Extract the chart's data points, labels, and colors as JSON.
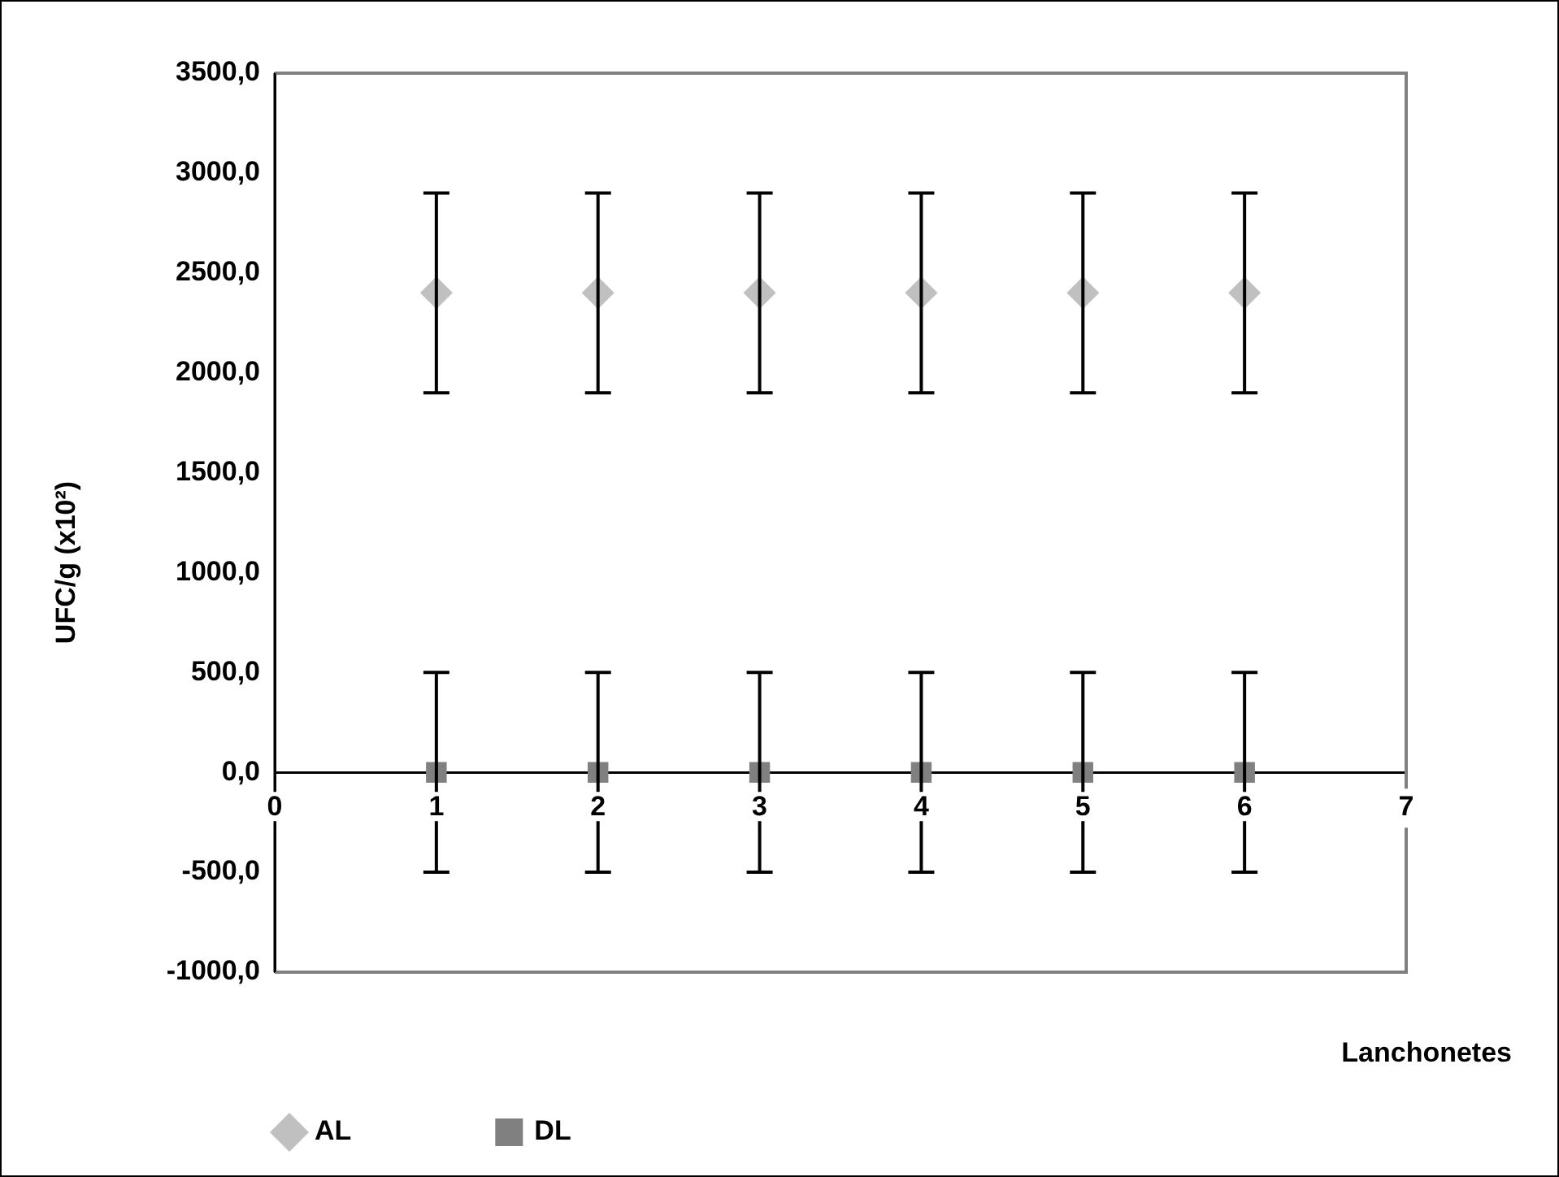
{
  "chart_data": {
    "type": "scatter",
    "xlabel": "Lanchonetes",
    "ylabel": "UFC/g (x10²)",
    "x": [
      1,
      2,
      3,
      4,
      5,
      6
    ],
    "series": [
      {
        "name": "AL",
        "color": "#c0c0c0",
        "values": [
          2400,
          2400,
          2400,
          2400,
          2400,
          2400
        ],
        "errors": [
          500,
          500,
          500,
          500,
          500,
          500
        ],
        "marker": "diamond"
      },
      {
        "name": "DL",
        "color": "#808080",
        "values": [
          0,
          0,
          0,
          0,
          0,
          0
        ],
        "errors": [
          500,
          500,
          500,
          500,
          500,
          500
        ],
        "marker": "square"
      }
    ],
    "xlim": [
      0,
      7
    ],
    "xticks": [
      0,
      1,
      2,
      3,
      4,
      5,
      6,
      7
    ],
    "ylim": [
      -1000,
      3500
    ],
    "yticks": [
      {
        "value": -1000,
        "label": "-1000,0"
      },
      {
        "value": -500,
        "label": "-500,0"
      },
      {
        "value": 0,
        "label": "0,0"
      },
      {
        "value": 500,
        "label": "500,0"
      },
      {
        "value": 1000,
        "label": "1000,0"
      },
      {
        "value": 1500,
        "label": "1500,0"
      },
      {
        "value": 2000,
        "label": "2000,0"
      },
      {
        "value": 2500,
        "label": "2500,0"
      },
      {
        "value": 3000,
        "label": "3000,0"
      },
      {
        "value": 3500,
        "label": "3500,0"
      }
    ],
    "grid": false,
    "legend": "bottom"
  }
}
